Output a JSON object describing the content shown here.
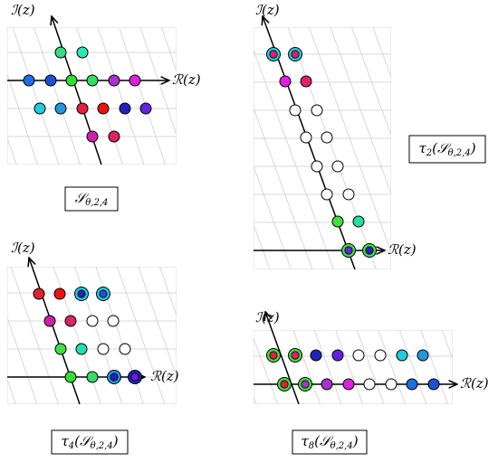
{
  "panels": [
    {
      "imag_axis_label": "ℐ(z)",
      "real_axis_label": "ℛ(z)",
      "caption": [
        {
          "text": "𝒮"
        },
        {
          "text": "θ,2,4",
          "sub": true
        }
      ]
    },
    {
      "imag_axis_label": "ℐ(z)",
      "real_axis_label": "ℛ(z)",
      "caption": [
        {
          "text": "τ"
        },
        {
          "text": "2",
          "sub": true
        },
        {
          "text": "(𝒮"
        },
        {
          "text": "θ,2,4",
          "sub": true
        },
        {
          "text": ")"
        }
      ]
    },
    {
      "imag_axis_label": "ℐ(z)",
      "real_axis_label": "ℛ(z)",
      "caption": [
        {
          "text": "τ"
        },
        {
          "text": "4",
          "sub": true
        },
        {
          "text": "(𝒮"
        },
        {
          "text": "θ,2,4",
          "sub": true
        },
        {
          "text": ")"
        }
      ]
    },
    {
      "imag_axis_label": "ℐ(z)",
      "real_axis_label": "ℛ(z)",
      "caption": [
        {
          "text": "τ"
        },
        {
          "text": "8",
          "sub": true
        },
        {
          "text": "(𝒮"
        },
        {
          "text": "θ,2,4",
          "sub": true
        },
        {
          "text": ")"
        }
      ]
    }
  ]
}
